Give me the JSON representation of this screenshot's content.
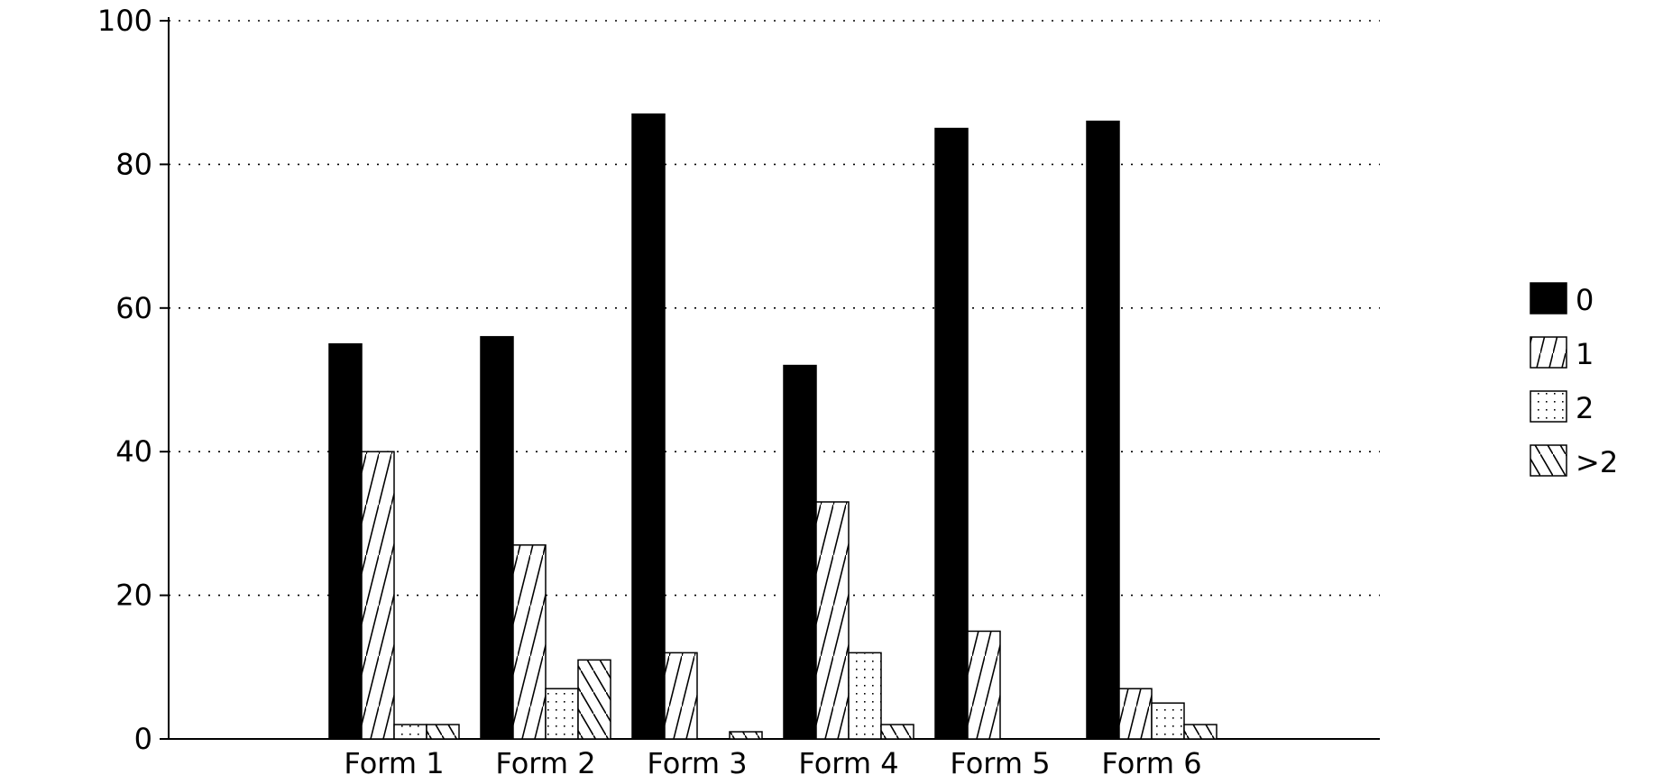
{
  "chart_data": {
    "type": "bar",
    "title": "",
    "xlabel": "",
    "ylabel": "",
    "ylim": [
      0,
      100
    ],
    "yticks": [
      0,
      20,
      40,
      60,
      80,
      100
    ],
    "grid": "horizontal-dotted",
    "legend_position": "right",
    "categories": [
      "Form 1",
      "Form 2",
      "Form 3",
      "Form 4",
      "Form 5",
      "Form 6"
    ],
    "series": [
      {
        "name": "0",
        "pattern": "solid",
        "values": [
          55,
          56,
          87,
          52,
          85,
          86
        ]
      },
      {
        "name": "1",
        "pattern": "forward",
        "values": [
          40,
          27,
          12,
          33,
          15,
          7
        ]
      },
      {
        "name": "2",
        "pattern": "dots",
        "values": [
          2,
          7,
          0,
          12,
          0,
          5
        ]
      },
      {
        "name": ">2",
        "pattern": "back",
        "values": [
          2,
          11,
          1,
          2,
          0,
          2
        ]
      }
    ],
    "colors": {
      "ink": "#000000",
      "background": "#ffffff"
    }
  }
}
